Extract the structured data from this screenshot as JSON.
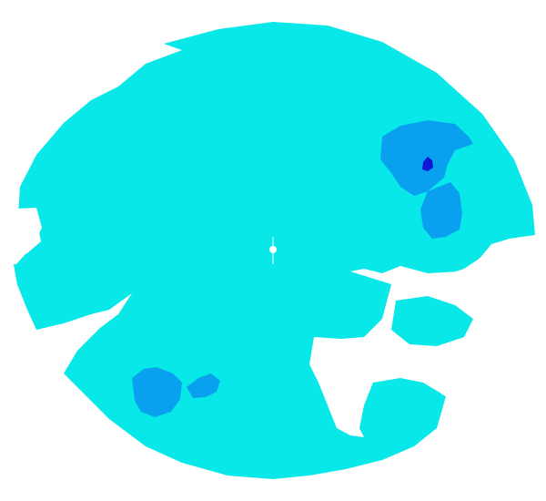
{
  "radar": {
    "colors": {
      "background": "#ffffff",
      "light_echo": "#08e8e8",
      "medium_echo": "#0aa0f0",
      "strong_echo": "#1018d8",
      "no_echo": "#ffffff"
    },
    "echo_levels": [
      "light",
      "medium",
      "strong"
    ],
    "cells": [
      {
        "name": "northeast-cell",
        "level": "medium"
      },
      {
        "name": "northeast-core",
        "level": "strong"
      },
      {
        "name": "east-band",
        "level": "medium"
      },
      {
        "name": "southwest-cell",
        "level": "medium"
      },
      {
        "name": "southwest-satellite",
        "level": "medium"
      }
    ],
    "center_marker": "radar-site"
  }
}
